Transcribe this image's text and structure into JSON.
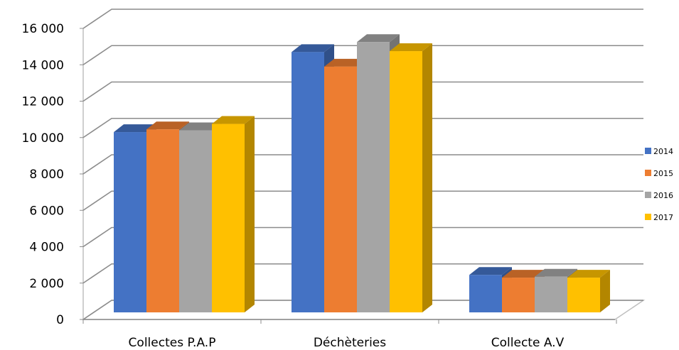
{
  "chart_data": {
    "type": "bar",
    "categories": [
      "Collectes P.A.P",
      "Déchèteries",
      "Collecte A.V"
    ],
    "series": [
      {
        "name": "2014",
        "color": "#4472C4",
        "values": [
          10300,
          14700,
          2450
        ]
      },
      {
        "name": "2015",
        "color": "#ED7D31",
        "values": [
          10450,
          13900,
          2300
        ]
      },
      {
        "name": "2016",
        "color": "#A5A5A5",
        "values": [
          10400,
          15250,
          2350
        ]
      },
      {
        "name": "2017",
        "color": "#FFC000",
        "values": [
          10750,
          14750,
          2300
        ]
      }
    ],
    "yticks": [
      0,
      2000,
      4000,
      6000,
      8000,
      10000,
      12000,
      14000,
      16000
    ],
    "ytick_labels": [
      "0",
      "2 000",
      "4 000",
      "6 000",
      "8 000",
      "10 000",
      "12 000",
      "14 000",
      "16 000"
    ],
    "ylim": [
      0,
      16000
    ],
    "grid": true,
    "legend_position": "right",
    "style": "3d-clustered-column"
  }
}
